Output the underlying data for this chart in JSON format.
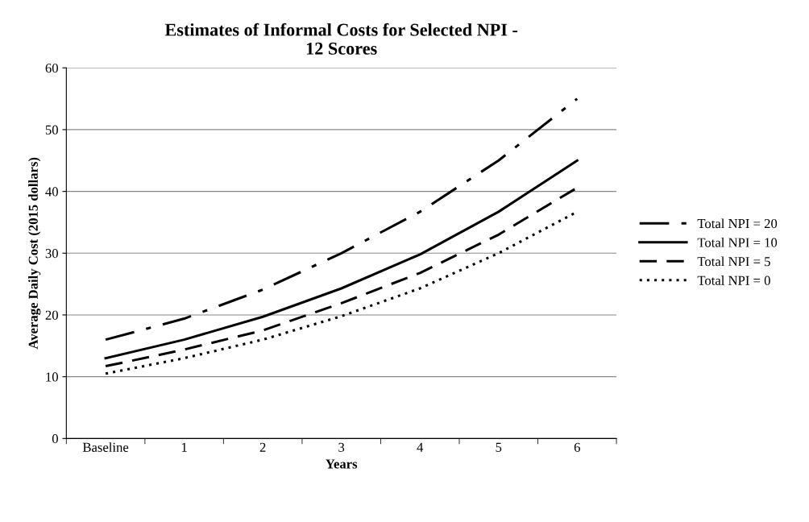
{
  "chart_data": {
    "type": "line",
    "title": "Estimates of Informal Costs for Selected NPI -\n12 Scores",
    "xlabel": "Years",
    "ylabel": "Average Daily Cost (2015 dollars)",
    "categories": [
      "Baseline",
      "1",
      "2",
      "3",
      "4",
      "5",
      "6"
    ],
    "series": [
      {
        "name": "Total NPI = 20",
        "color": "#000000",
        "line_style": "dashdot",
        "values": [
          16.0,
          19.4,
          24.1,
          30.0,
          36.7,
          45.0,
          55.0
        ]
      },
      {
        "name": "Total NPI = 10",
        "color": "#000000",
        "line_style": "solid",
        "values": [
          13.0,
          16.0,
          19.7,
          24.3,
          29.8,
          36.7,
          45.0
        ]
      },
      {
        "name": "Total NPI = 5",
        "color": "#000000",
        "line_style": "dashed",
        "values": [
          11.7,
          14.4,
          17.5,
          21.9,
          26.8,
          33.0,
          40.6
        ]
      },
      {
        "name": "Total NPI = 0",
        "color": "#000000",
        "line_style": "dotted",
        "values": [
          10.5,
          13.0,
          16.0,
          19.8,
          24.3,
          30.0,
          36.7
        ]
      }
    ],
    "ylim": [
      0,
      60
    ],
    "yticks": [
      0,
      10,
      20,
      30,
      40,
      50,
      60
    ],
    "grid": "y",
    "legend": "right",
    "marker": "none"
  }
}
